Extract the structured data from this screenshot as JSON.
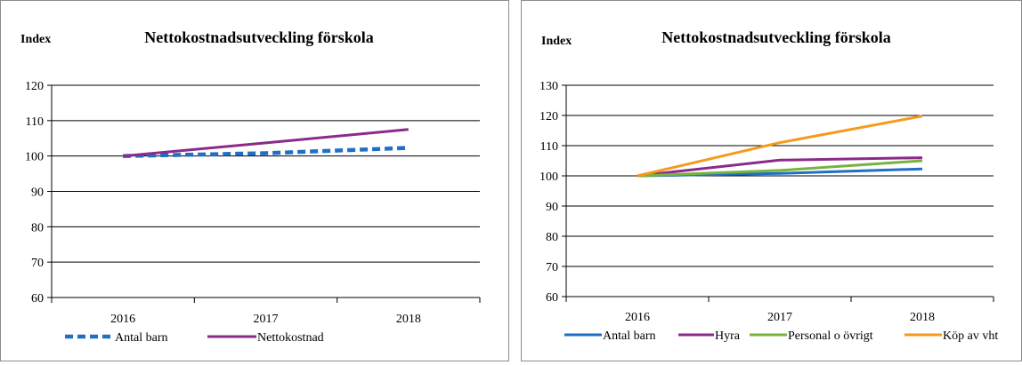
{
  "chart_data": [
    {
      "type": "line",
      "title": "Nettokostnadsutveckling förskola",
      "ylabel": "Index",
      "xlabel": "",
      "categories": [
        "2016",
        "2017",
        "2018"
      ],
      "ylim": [
        60,
        120
      ],
      "yticks": [
        60,
        70,
        80,
        90,
        100,
        110,
        120
      ],
      "grid": true,
      "legend": "bottom",
      "series": [
        {
          "name": "Antal barn",
          "values": [
            100,
            100.8,
            102.3
          ],
          "color": "#1f6fc5",
          "style": "dashed"
        },
        {
          "name": "Nettokostnad",
          "values": [
            100,
            103.7,
            107.5
          ],
          "color": "#8b2a8b",
          "style": "solid"
        }
      ]
    },
    {
      "type": "line",
      "title": "Nettokostnadsutveckling förskola",
      "ylabel": "Index",
      "xlabel": "",
      "categories": [
        "2016",
        "2017",
        "2018"
      ],
      "ylim": [
        60,
        130
      ],
      "yticks": [
        60,
        70,
        80,
        90,
        100,
        110,
        120,
        130
      ],
      "grid": true,
      "legend": "bottom",
      "series": [
        {
          "name": "Antal barn",
          "values": [
            100,
            100.8,
            102.3
          ],
          "color": "#1f6fc5",
          "style": "solid"
        },
        {
          "name": "Hyra",
          "values": [
            100,
            105.2,
            106
          ],
          "color": "#8b2a8b",
          "style": "solid"
        },
        {
          "name": "Personal o övrigt",
          "values": [
            100,
            101.8,
            105
          ],
          "color": "#77b33d",
          "style": "solid"
        },
        {
          "name": "Köp av vht",
          "values": [
            100,
            111,
            119.8
          ],
          "color": "#f59a1b",
          "style": "solid"
        }
      ]
    }
  ]
}
